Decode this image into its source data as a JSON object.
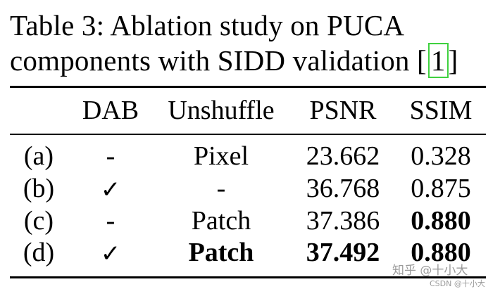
{
  "caption": {
    "line1": "Table 3:  Ablation study on PUCA",
    "line2_prefix": "components with SIDD validation [",
    "ref_number": "1",
    "line2_suffix": "]"
  },
  "table": {
    "headers": [
      "",
      "DAB",
      "Unshuffle",
      "PSNR",
      "SSIM"
    ],
    "rows": [
      {
        "label": "(a)",
        "dab": "-",
        "unshuffle": "Pixel",
        "psnr": "23.662",
        "ssim": "0.328"
      },
      {
        "label": "(b)",
        "dab": "✓",
        "unshuffle": "-",
        "psnr": "36.768",
        "ssim": "0.875"
      },
      {
        "label": "(c)",
        "dab": "-",
        "unshuffle": "Patch",
        "psnr": "37.386",
        "ssim": "0.880"
      },
      {
        "label": "(d)",
        "dab": "✓",
        "unshuffle": "Patch",
        "psnr": "37.492",
        "ssim": "0.880"
      }
    ]
  },
  "watermark": {
    "main": "知乎 @十小大",
    "sub": "CSDN @十小大"
  },
  "colors": {
    "ref_box": "#3fd13f"
  }
}
